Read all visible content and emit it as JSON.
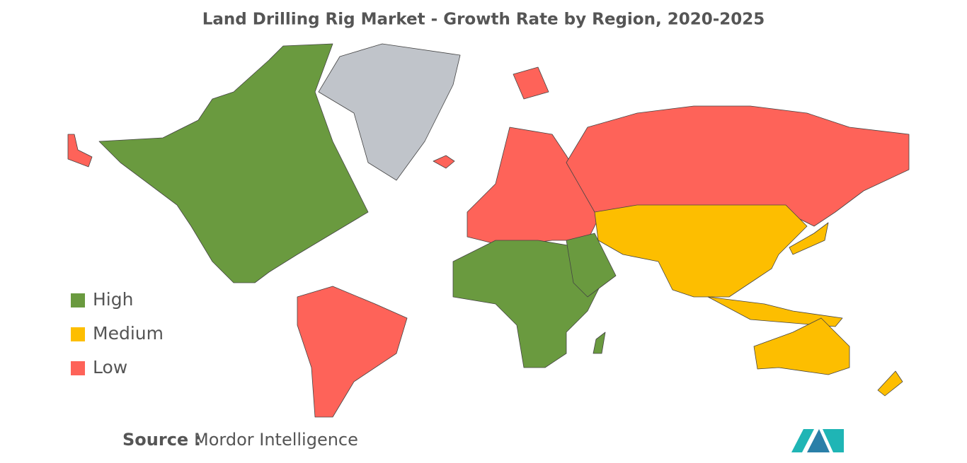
{
  "title": "Land Drilling Rig Market - Growth Rate by Region, 2020-2025",
  "legend": [
    {
      "label": "High",
      "color": "#6a9a3f"
    },
    {
      "label": "Medium",
      "color": "#fdbe00"
    },
    {
      "label": "Low",
      "color": "#fe6359"
    }
  ],
  "source": {
    "label": "Source :",
    "text": "Mordor Intelligence"
  }
}
